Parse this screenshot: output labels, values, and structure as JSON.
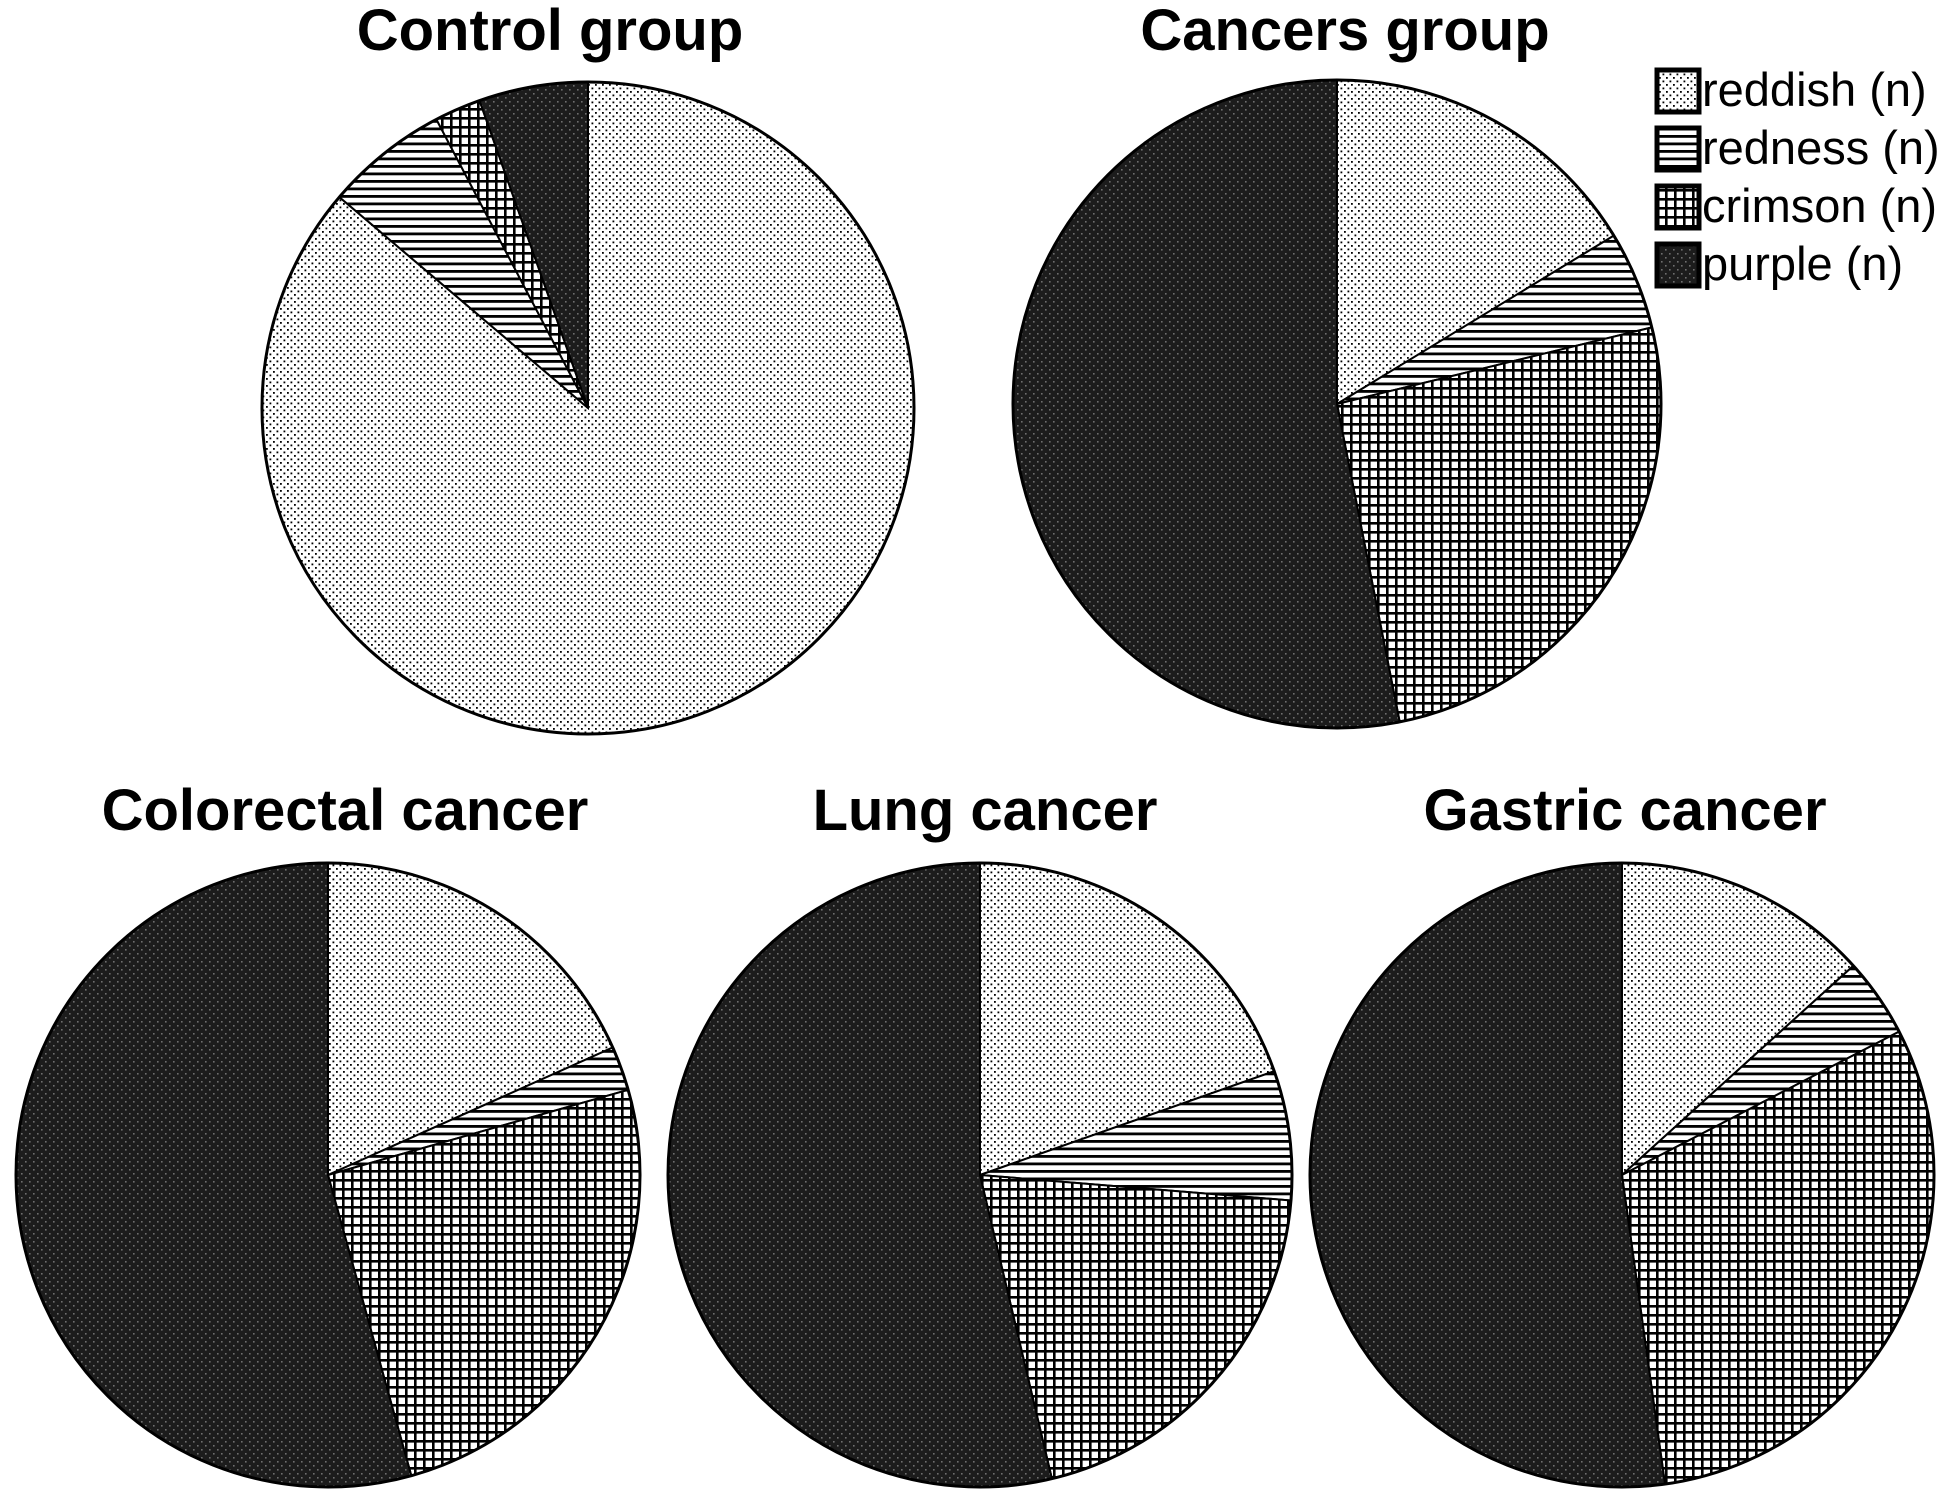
{
  "figure": {
    "background_color": "#ffffff",
    "ink_color": "#000000",
    "description": "Five black-and-white patterned pie charts comparing tongue color distributions"
  },
  "legend": {
    "position": "top-right",
    "entries": [
      {
        "label": "reddish (n)",
        "pattern": "light-dots-swatch"
      },
      {
        "label": "redness (n)",
        "pattern": "h-stripes-swatch"
      },
      {
        "label": "crimson (n)",
        "pattern": "grid-swatch"
      },
      {
        "label": "purple (n)",
        "pattern": "dark-speckle-swatch"
      }
    ]
  },
  "chart_data": [
    {
      "type": "pie",
      "title": "Control group",
      "categories": [
        "reddish (n)",
        "redness (n)",
        "crimson (n)",
        "purple (n)"
      ],
      "values_pct": [
        86.2,
        6.1,
        2.3,
        5.4
      ],
      "start_angle": "12-o-clock",
      "direction": "clockwise",
      "patterns": [
        "light-dots",
        "h-stripes",
        "grid",
        "dark-speckle"
      ]
    },
    {
      "type": "pie",
      "title": "Cancers group",
      "categories": [
        "reddish (n)",
        "redness (n)",
        "crimson (n)",
        "purple (n)"
      ],
      "values_pct": [
        16.3,
        4.9,
        25.7,
        53.1
      ],
      "start_angle": "12-o-clock",
      "direction": "clockwise",
      "patterns": [
        "light-dots",
        "h-stripes",
        "grid",
        "dark-speckle"
      ]
    },
    {
      "type": "pie",
      "title": "Colorectal cancer",
      "categories": [
        "reddish (n)",
        "redness (n)",
        "crimson (n)",
        "purple (n)"
      ],
      "values_pct": [
        18.3,
        2.3,
        25.1,
        54.3
      ],
      "start_angle": "12-o-clock",
      "direction": "clockwise",
      "patterns": [
        "light-dots",
        "h-stripes",
        "grid",
        "dark-speckle"
      ]
    },
    {
      "type": "pie",
      "title": "Lung cancer",
      "categories": [
        "reddish (n)",
        "redness (n)",
        "crimson (n)",
        "purple (n)"
      ],
      "values_pct": [
        19.6,
        6.7,
        20.0,
        53.7
      ],
      "start_angle": "12-o-clock",
      "direction": "clockwise",
      "patterns": [
        "light-dots",
        "h-stripes",
        "grid",
        "dark-speckle"
      ]
    },
    {
      "type": "pie",
      "title": "Gastric cancer",
      "categories": [
        "reddish (n)",
        "redness (n)",
        "crimson (n)",
        "purple (n)"
      ],
      "values_pct": [
        13.3,
        4.1,
        30.4,
        52.2
      ],
      "start_angle": "12-o-clock",
      "direction": "clockwise",
      "patterns": [
        "light-dots",
        "h-stripes",
        "grid",
        "dark-speckle"
      ]
    }
  ]
}
